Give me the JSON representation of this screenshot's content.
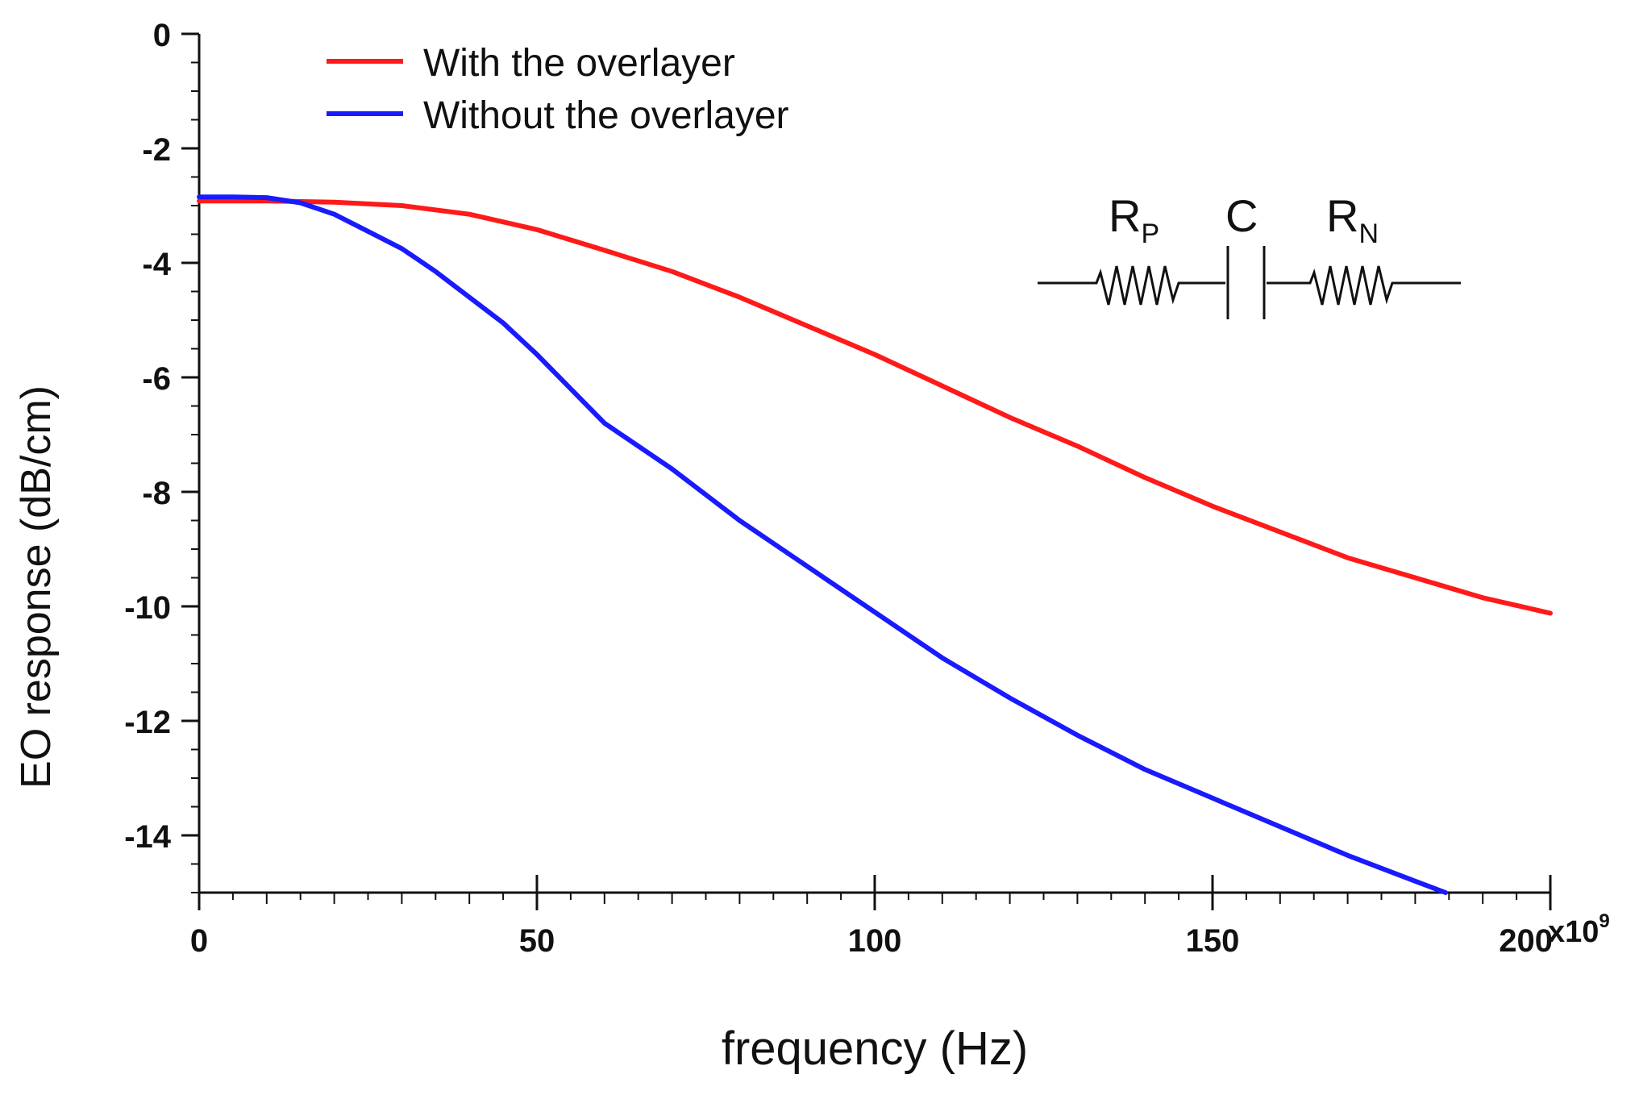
{
  "chart_data": {
    "type": "line",
    "title": "",
    "xlabel": "frequency (Hz)",
    "ylabel": "EO response (dB/cm)",
    "x_multiplier_label": "x10",
    "x_multiplier_exponent": "9",
    "xlim": [
      0,
      200
    ],
    "ylim": [
      -15,
      0
    ],
    "x_ticks": [
      0,
      50,
      100,
      150,
      200
    ],
    "x_tick_labels": [
      "0",
      "50",
      "100",
      "150",
      "200"
    ],
    "y_ticks": [
      0,
      -2,
      -4,
      -6,
      -8,
      -10,
      -12,
      -14
    ],
    "y_tick_labels": [
      "0",
      "-2",
      "-4",
      "-6",
      "-8",
      "-10",
      "-12",
      "-14"
    ],
    "x_minor_step": 5,
    "y_minor_step": 0.5,
    "grid": false,
    "legend_position": "top-left",
    "series": [
      {
        "name": "With the overlayer",
        "color": "#ff1a1a",
        "x": [
          0,
          10,
          20,
          30,
          40,
          50,
          60,
          70,
          80,
          90,
          100,
          110,
          120,
          130,
          140,
          150,
          160,
          170,
          180,
          190,
          200
        ],
        "y": [
          -2.92,
          -2.92,
          -2.94,
          -3.0,
          -3.15,
          -3.42,
          -3.78,
          -4.15,
          -4.6,
          -5.1,
          -5.6,
          -6.15,
          -6.7,
          -7.2,
          -7.75,
          -8.25,
          -8.7,
          -9.15,
          -9.5,
          -9.85,
          -10.12
        ]
      },
      {
        "name": "Without the overlayer",
        "color": "#1a1aff",
        "x": [
          0,
          5,
          10,
          15,
          20,
          25,
          30,
          35,
          40,
          45,
          50,
          55,
          60,
          70,
          80,
          90,
          100,
          110,
          120,
          130,
          140,
          150,
          160,
          170,
          180,
          184.5
        ],
        "y": [
          -2.85,
          -2.85,
          -2.86,
          -2.95,
          -3.15,
          -3.45,
          -3.75,
          -4.15,
          -4.6,
          -5.05,
          -5.6,
          -6.2,
          -6.8,
          -7.6,
          -8.5,
          -9.3,
          -10.1,
          -10.9,
          -11.6,
          -12.25,
          -12.85,
          -13.35,
          -13.85,
          -14.35,
          -14.8,
          -15.0
        ]
      }
    ],
    "inset_diagram": {
      "labels": [
        {
          "main": "R",
          "sub": "P"
        },
        {
          "main": "C",
          "sub": ""
        },
        {
          "main": "R",
          "sub": "N"
        }
      ]
    }
  }
}
